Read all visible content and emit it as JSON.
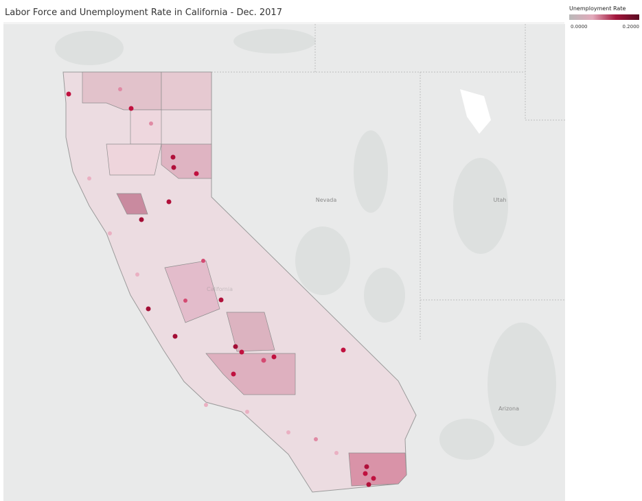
{
  "header": {
    "title": "Labor Force and Unemployment Rate in California - Dec. 2017"
  },
  "legend": {
    "title": "Unemployment Rate",
    "min": {
      "value": 0,
      "label": "0.0000"
    },
    "max": {
      "value": 0.2,
      "label": "0.2000"
    }
  },
  "map": {
    "labels": [
      "Nevada",
      "Utah",
      "California",
      "Arizona"
    ]
  }
}
